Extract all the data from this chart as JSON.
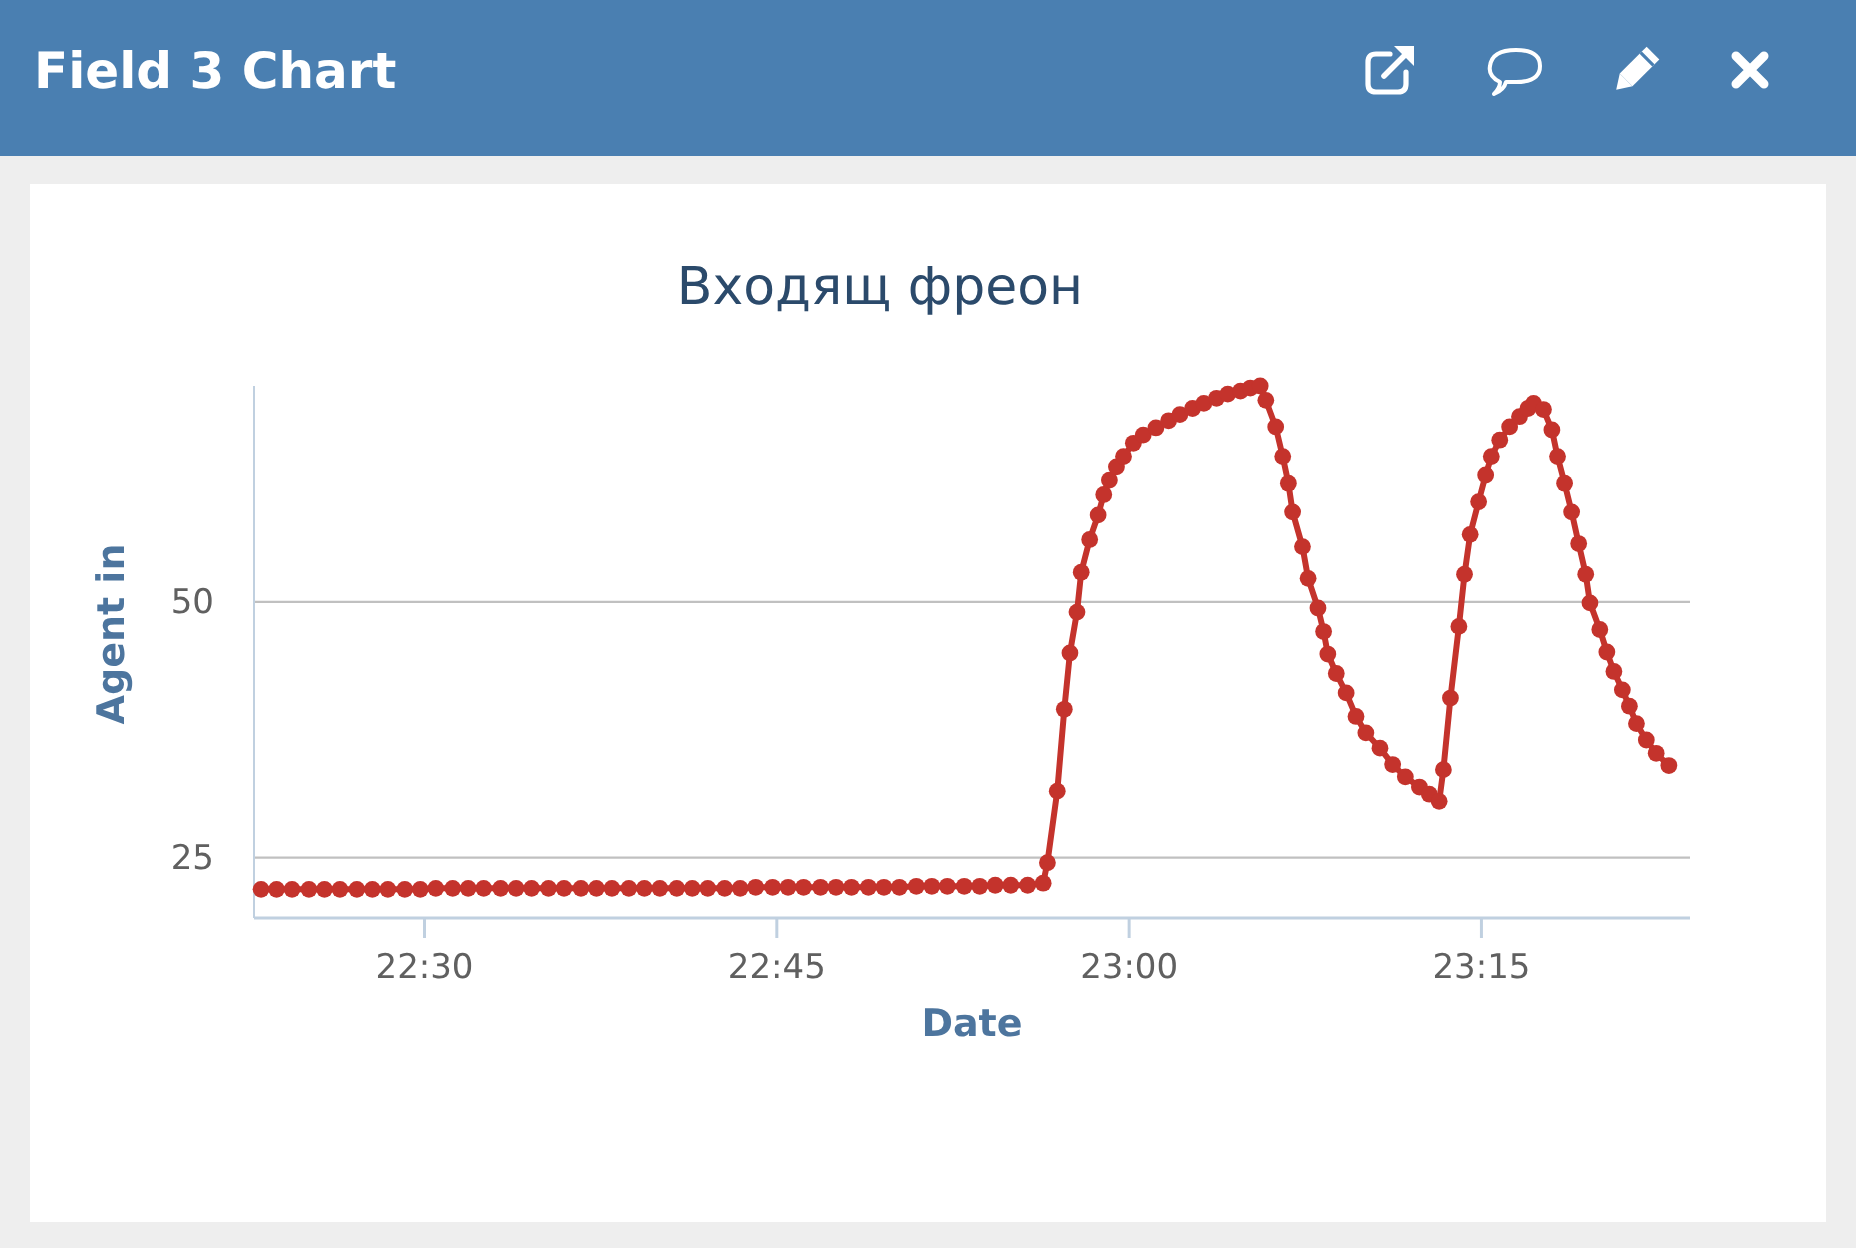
{
  "chart_data": {
    "type": "line",
    "title": "Входящ фреон",
    "xlabel": "Date",
    "ylabel": "Agent in",
    "annotations": [
      "Field 3 Chart"
    ],
    "x": [
      22.384,
      22.395,
      22.406,
      22.418,
      22.429,
      22.44,
      22.452,
      22.463,
      22.474,
      22.486,
      22.497,
      22.508,
      22.52,
      22.531,
      22.542,
      22.554,
      22.565,
      22.576,
      22.588,
      22.599,
      22.611,
      22.622,
      22.633,
      22.645,
      22.656,
      22.667,
      22.679,
      22.69,
      22.701,
      22.713,
      22.724,
      22.735,
      22.747,
      22.758,
      22.769,
      22.781,
      22.792,
      22.803,
      22.815,
      22.826,
      22.837,
      22.849,
      22.86,
      22.871,
      22.883,
      22.894,
      22.905,
      22.916,
      22.928,
      22.939,
      22.942,
      22.949,
      22.954,
      22.958,
      22.963,
      22.966,
      22.972,
      22.978,
      22.982,
      22.986,
      22.991,
      22.996,
      23.003,
      23.01,
      23.019,
      23.028,
      23.036,
      23.045,
      23.053,
      23.062,
      23.07,
      23.079,
      23.086,
      23.093,
      23.097,
      23.104,
      23.109,
      23.113,
      23.116,
      23.123,
      23.127,
      23.134,
      23.138,
      23.141,
      23.147,
      23.154,
      23.161,
      23.168,
      23.178,
      23.187,
      23.196,
      23.206,
      23.213,
      23.22,
      23.223,
      23.228,
      23.234,
      23.238,
      23.242,
      23.248,
      23.253,
      23.257,
      23.263,
      23.27,
      23.277,
      23.283,
      23.287,
      23.294,
      23.3,
      23.304,
      23.309,
      23.314,
      23.319,
      23.324,
      23.327,
      23.334,
      23.339,
      23.344,
      23.35,
      23.355,
      23.36,
      23.367,
      23.374,
      23.383
    ],
    "values": [
      21.9,
      21.9,
      21.9,
      21.9,
      21.9,
      21.9,
      21.9,
      21.9,
      21.9,
      21.9,
      21.9,
      22.0,
      22.0,
      22.0,
      22.0,
      22.0,
      22.0,
      22.0,
      22.0,
      22.0,
      22.0,
      22.0,
      22.0,
      22.0,
      22.0,
      22.0,
      22.0,
      22.0,
      22.0,
      22.0,
      22.0,
      22.1,
      22.1,
      22.1,
      22.1,
      22.1,
      22.1,
      22.1,
      22.1,
      22.1,
      22.1,
      22.2,
      22.2,
      22.2,
      22.2,
      22.2,
      22.3,
      22.3,
      22.3,
      22.5,
      24.5,
      31.5,
      39.5,
      45.0,
      49.0,
      52.9,
      56.1,
      58.5,
      60.5,
      61.9,
      63.2,
      64.2,
      65.5,
      66.3,
      67.0,
      67.7,
      68.3,
      68.9,
      69.4,
      69.9,
      70.3,
      70.6,
      70.9,
      71.1,
      69.7,
      67.1,
      64.2,
      61.6,
      58.8,
      55.4,
      52.3,
      49.4,
      47.1,
      44.9,
      43.0,
      41.1,
      38.8,
      37.2,
      35.7,
      34.1,
      32.9,
      31.9,
      31.2,
      30.5,
      33.6,
      40.6,
      47.6,
      52.7,
      56.6,
      59.8,
      62.4,
      64.2,
      65.8,
      67.1,
      68.1,
      68.9,
      69.4,
      68.8,
      66.8,
      64.2,
      61.6,
      58.8,
      55.7,
      52.7,
      49.9,
      47.3,
      45.1,
      43.2,
      41.4,
      39.8,
      38.1,
      36.5,
      35.2,
      34.0
    ],
    "color": "#c4332c",
    "xlim": [
      22.379,
      23.398
    ],
    "xticks": [
      {
        "value": 22.5,
        "label": "22:30"
      },
      {
        "value": 22.75,
        "label": "22:45"
      },
      {
        "value": 23.0,
        "label": "23:00"
      },
      {
        "value": 23.25,
        "label": "23:15"
      }
    ],
    "ylim": [
      19.1,
      71.1
    ],
    "yticks": [
      25,
      50
    ],
    "grid": "y",
    "marker": "circle",
    "line_style": "solid"
  }
}
